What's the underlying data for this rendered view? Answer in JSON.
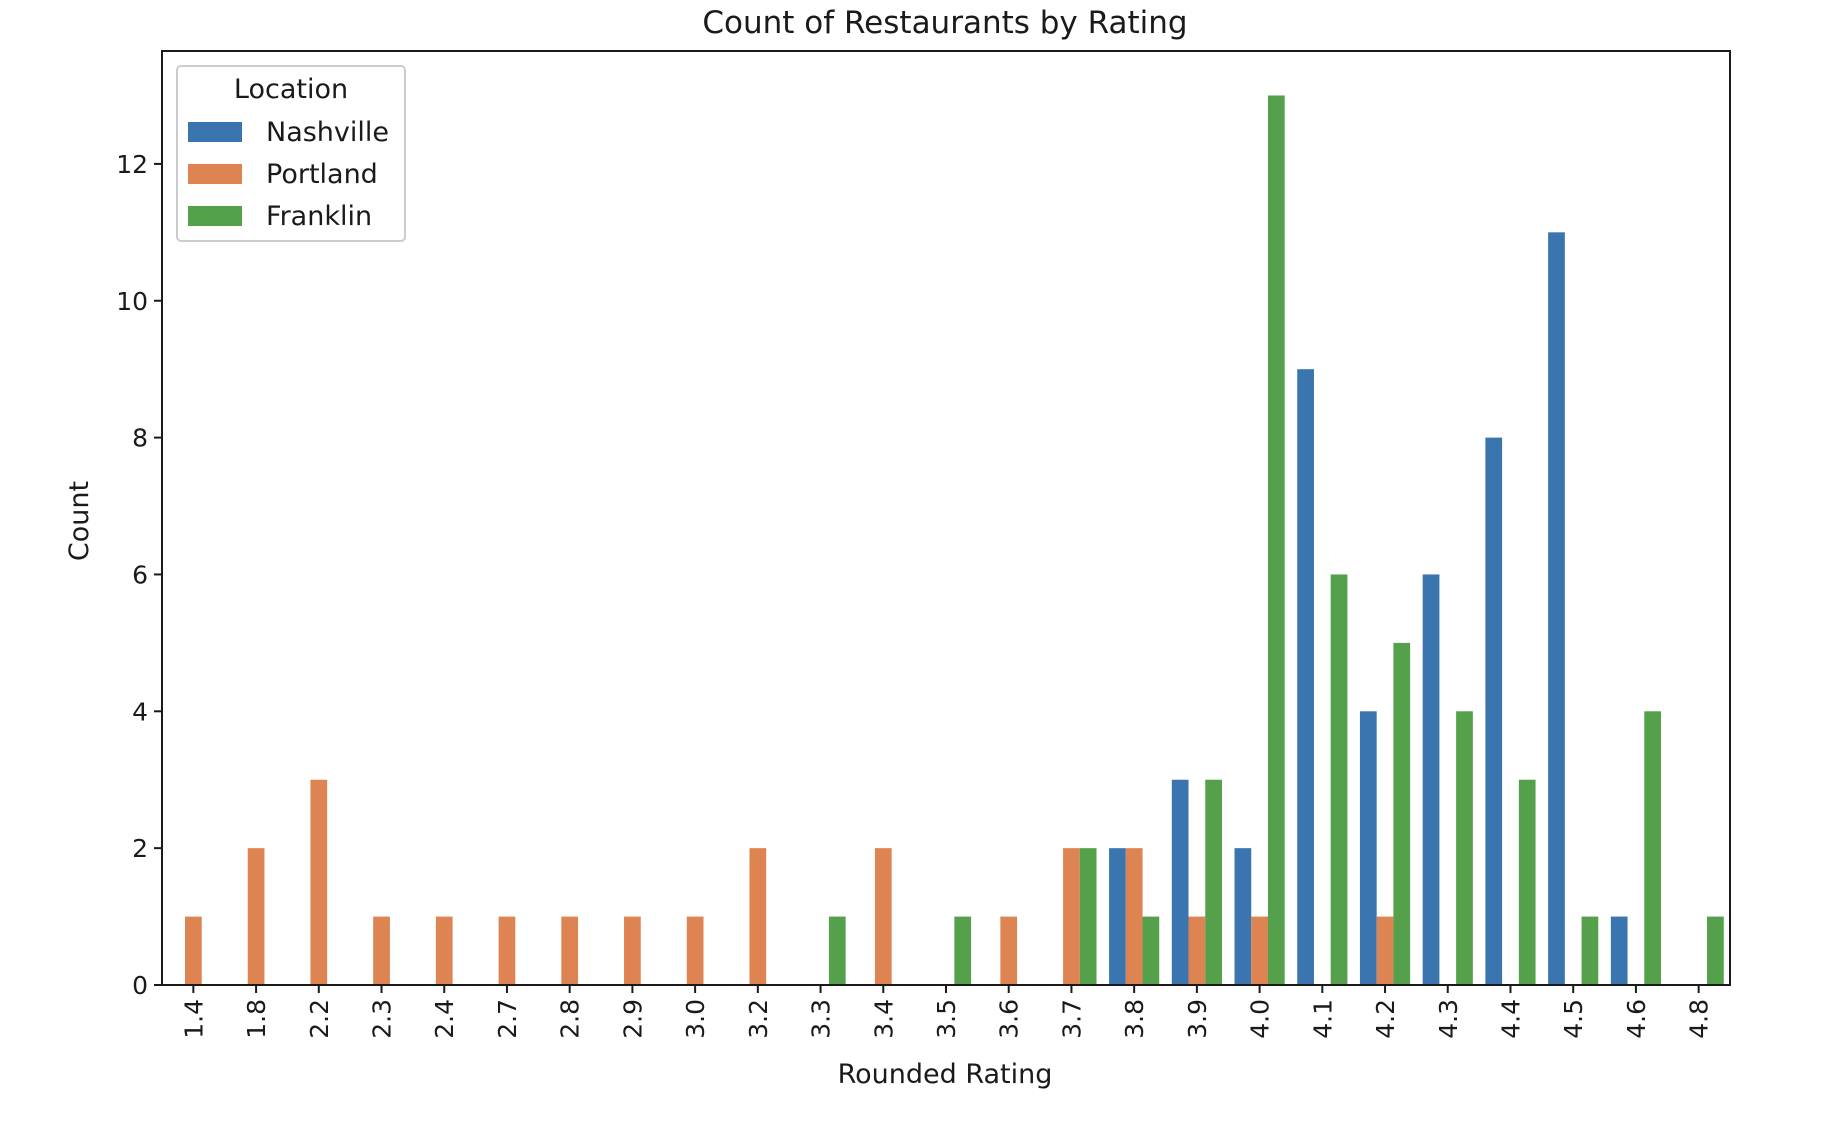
{
  "chart_data": {
    "type": "bar",
    "title": "Count of Restaurants by Rating",
    "xlabel": "Rounded Rating",
    "ylabel": "Count",
    "ylim": [
      0,
      13.65
    ],
    "yticks": [
      0,
      2,
      4,
      6,
      8,
      10,
      12
    ],
    "categories": [
      "1.4",
      "1.8",
      "2.2",
      "2.3",
      "2.4",
      "2.7",
      "2.8",
      "2.9",
      "3.0",
      "3.2",
      "3.3",
      "3.4",
      "3.5",
      "3.6",
      "3.7",
      "3.8",
      "3.9",
      "4.0",
      "4.1",
      "4.2",
      "4.3",
      "4.4",
      "4.5",
      "4.6",
      "4.8"
    ],
    "legend": {
      "title": "Location",
      "placement": "top-left"
    },
    "grid": false,
    "series": [
      {
        "name": "Nashville",
        "color": "#3b75af",
        "values": [
          0,
          0,
          0,
          0,
          0,
          0,
          0,
          0,
          0,
          0,
          0,
          0,
          0,
          0,
          0,
          2,
          3,
          2,
          9,
          4,
          6,
          8,
          11,
          1,
          0
        ]
      },
      {
        "name": "Portland",
        "color": "#dd8452",
        "values": [
          1,
          2,
          3,
          1,
          1,
          1,
          1,
          1,
          1,
          2,
          0,
          2,
          0,
          1,
          2,
          2,
          1,
          1,
          0,
          1,
          0,
          0,
          0,
          0,
          0
        ]
      },
      {
        "name": "Franklin",
        "color": "#55a14b",
        "values": [
          0,
          0,
          0,
          0,
          0,
          0,
          0,
          0,
          0,
          0,
          1,
          0,
          1,
          0,
          2,
          1,
          3,
          13,
          6,
          5,
          4,
          3,
          1,
          4,
          1
        ]
      }
    ]
  }
}
